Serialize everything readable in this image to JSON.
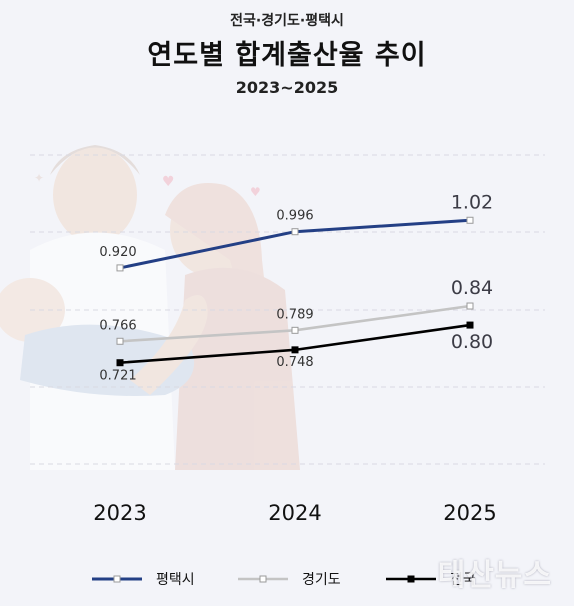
{
  "header": {
    "subtitle": "전국·경기도·평택시",
    "title": "연도별 합계출산율 추이",
    "period": "2023~2025"
  },
  "chart_data": {
    "type": "line",
    "x": [
      "2023",
      "2024",
      "2025"
    ],
    "series": [
      {
        "name": "평택시",
        "values": [
          0.92,
          0.996,
          1.02
        ],
        "labels": [
          "0.920",
          "0.996",
          "1.02"
        ],
        "color": "#233f85",
        "marker": "square-hollow"
      },
      {
        "name": "경기도",
        "values": [
          0.766,
          0.789,
          0.84
        ],
        "labels": [
          "0.766",
          "0.789",
          "0.84"
        ],
        "color": "#c4c4c4",
        "marker": "square-hollow"
      },
      {
        "name": "전국",
        "values": [
          0.721,
          0.748,
          0.8
        ],
        "labels": [
          "0.721",
          "0.748",
          "0.80"
        ],
        "color": "#000000",
        "marker": "square-filled"
      }
    ],
    "ylim": [
      0.7,
      1.05
    ],
    "grid": "dashed-horizontal",
    "legend": "bottom"
  },
  "watermark": "태산뉴스"
}
